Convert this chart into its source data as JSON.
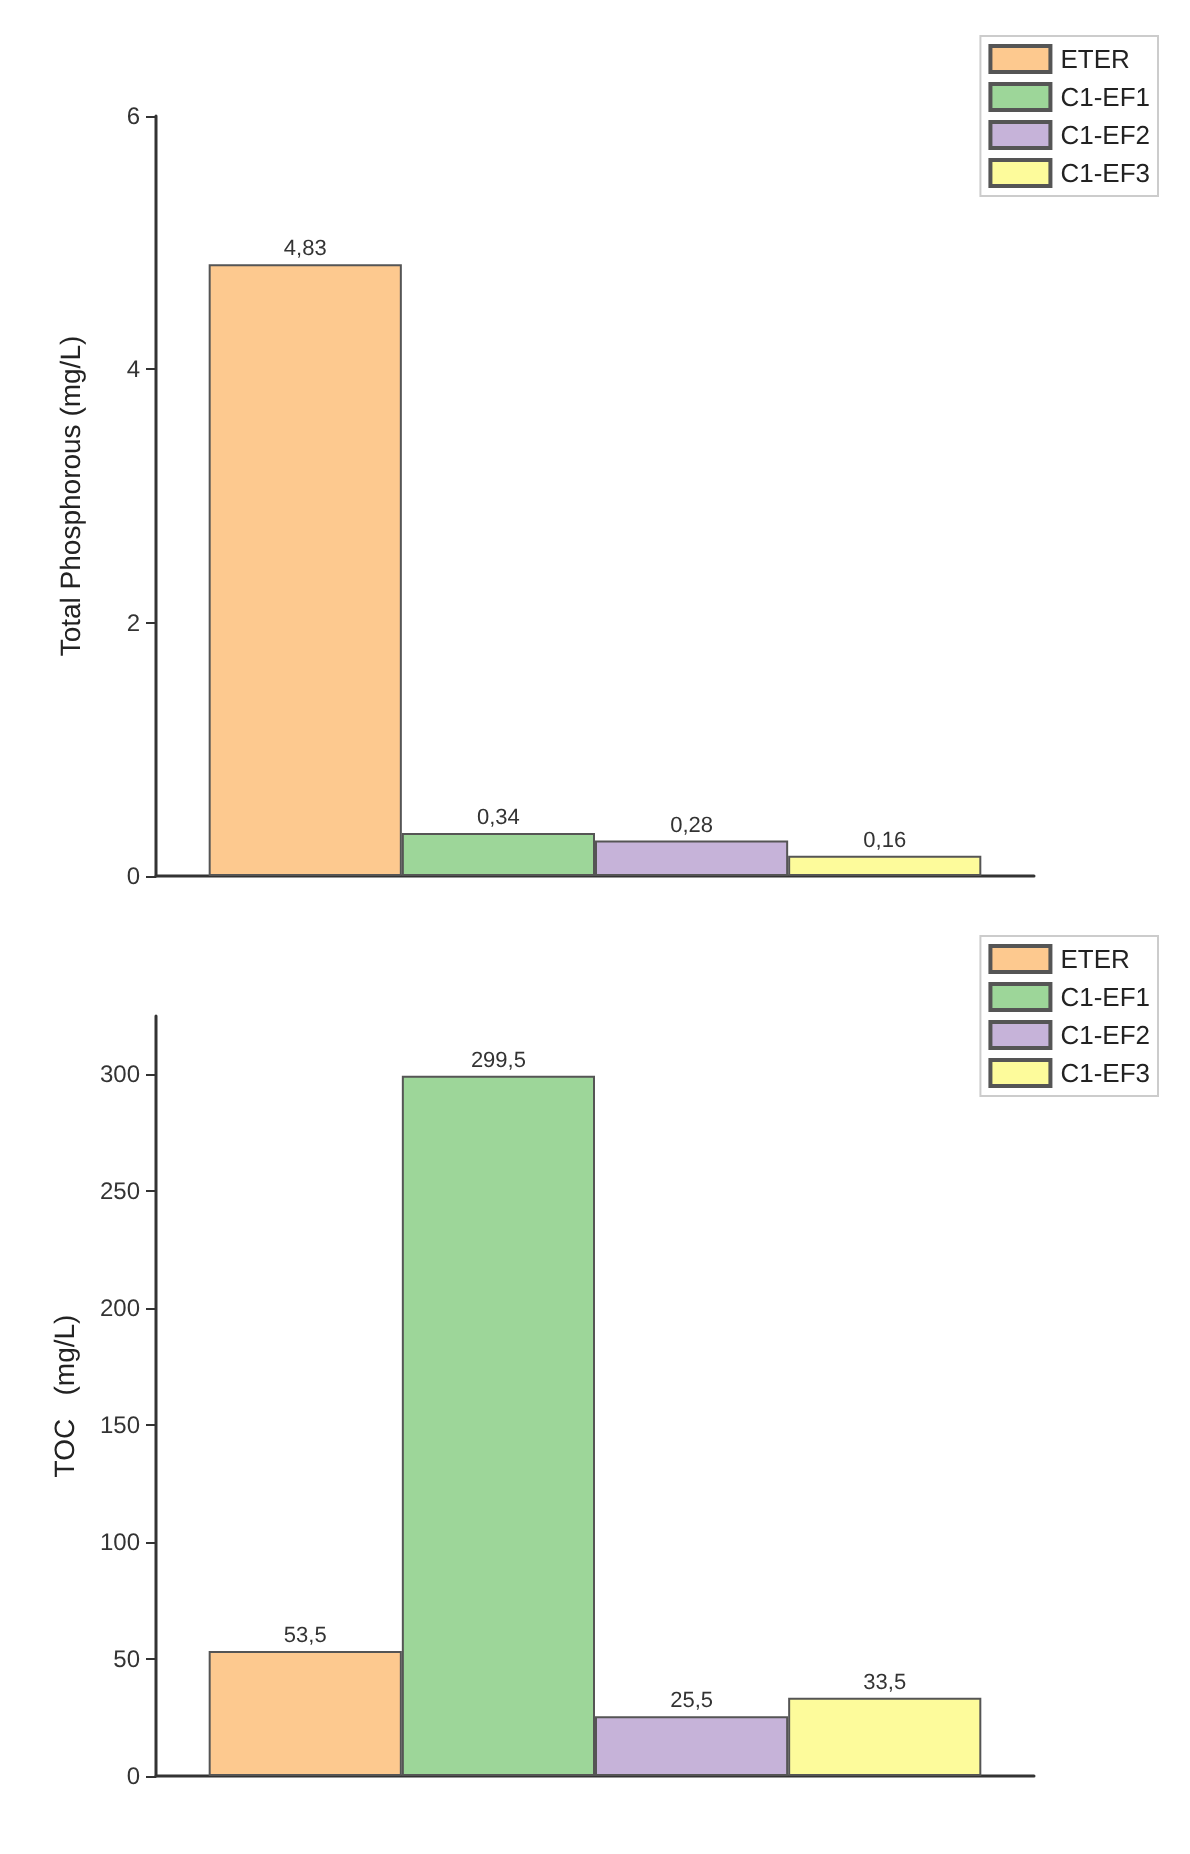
{
  "chart_data": [
    {
      "type": "bar",
      "ylabel": "Total Phosphorous (mg/L)",
      "categories": [
        null
      ],
      "ylim": [
        0,
        6
      ],
      "yticks": [
        0,
        2,
        4,
        6
      ],
      "legend": "top right",
      "grid": false,
      "series": [
        {
          "name": "ETER",
          "color": "#fdc98f",
          "values": [
            4.83
          ],
          "value_labels": [
            "4,83"
          ]
        },
        {
          "name": "C1-EF1",
          "color": "#9dd699",
          "values": [
            0.34
          ],
          "value_labels": [
            "0,34"
          ]
        },
        {
          "name": "C1-EF2",
          "color": "#c6b3d9",
          "values": [
            0.28
          ],
          "value_labels": [
            "0,28"
          ]
        },
        {
          "name": "C1-EF3",
          "color": "#fdfb9b",
          "values": [
            0.16
          ],
          "value_labels": [
            "0,16"
          ]
        }
      ]
    },
    {
      "type": "bar",
      "ylabel": "TOC   (mg/L)",
      "categories": [
        null
      ],
      "ylim": [
        0,
        325
      ],
      "yticks": [
        0,
        50,
        100,
        150,
        200,
        250,
        300
      ],
      "legend": "top right",
      "grid": false,
      "series": [
        {
          "name": "ETER",
          "color": "#fdc98f",
          "values": [
            53.5
          ],
          "value_labels": [
            "53,5"
          ]
        },
        {
          "name": "C1-EF1",
          "color": "#9dd699",
          "values": [
            299.5
          ],
          "value_labels": [
            "299,5"
          ]
        },
        {
          "name": "C1-EF2",
          "color": "#c6b3d9",
          "values": [
            25.5
          ],
          "value_labels": [
            "25,5"
          ]
        },
        {
          "name": "C1-EF3",
          "color": "#fdfb9b",
          "values": [
            33.5
          ],
          "value_labels": [
            "33,5"
          ]
        }
      ]
    }
  ]
}
